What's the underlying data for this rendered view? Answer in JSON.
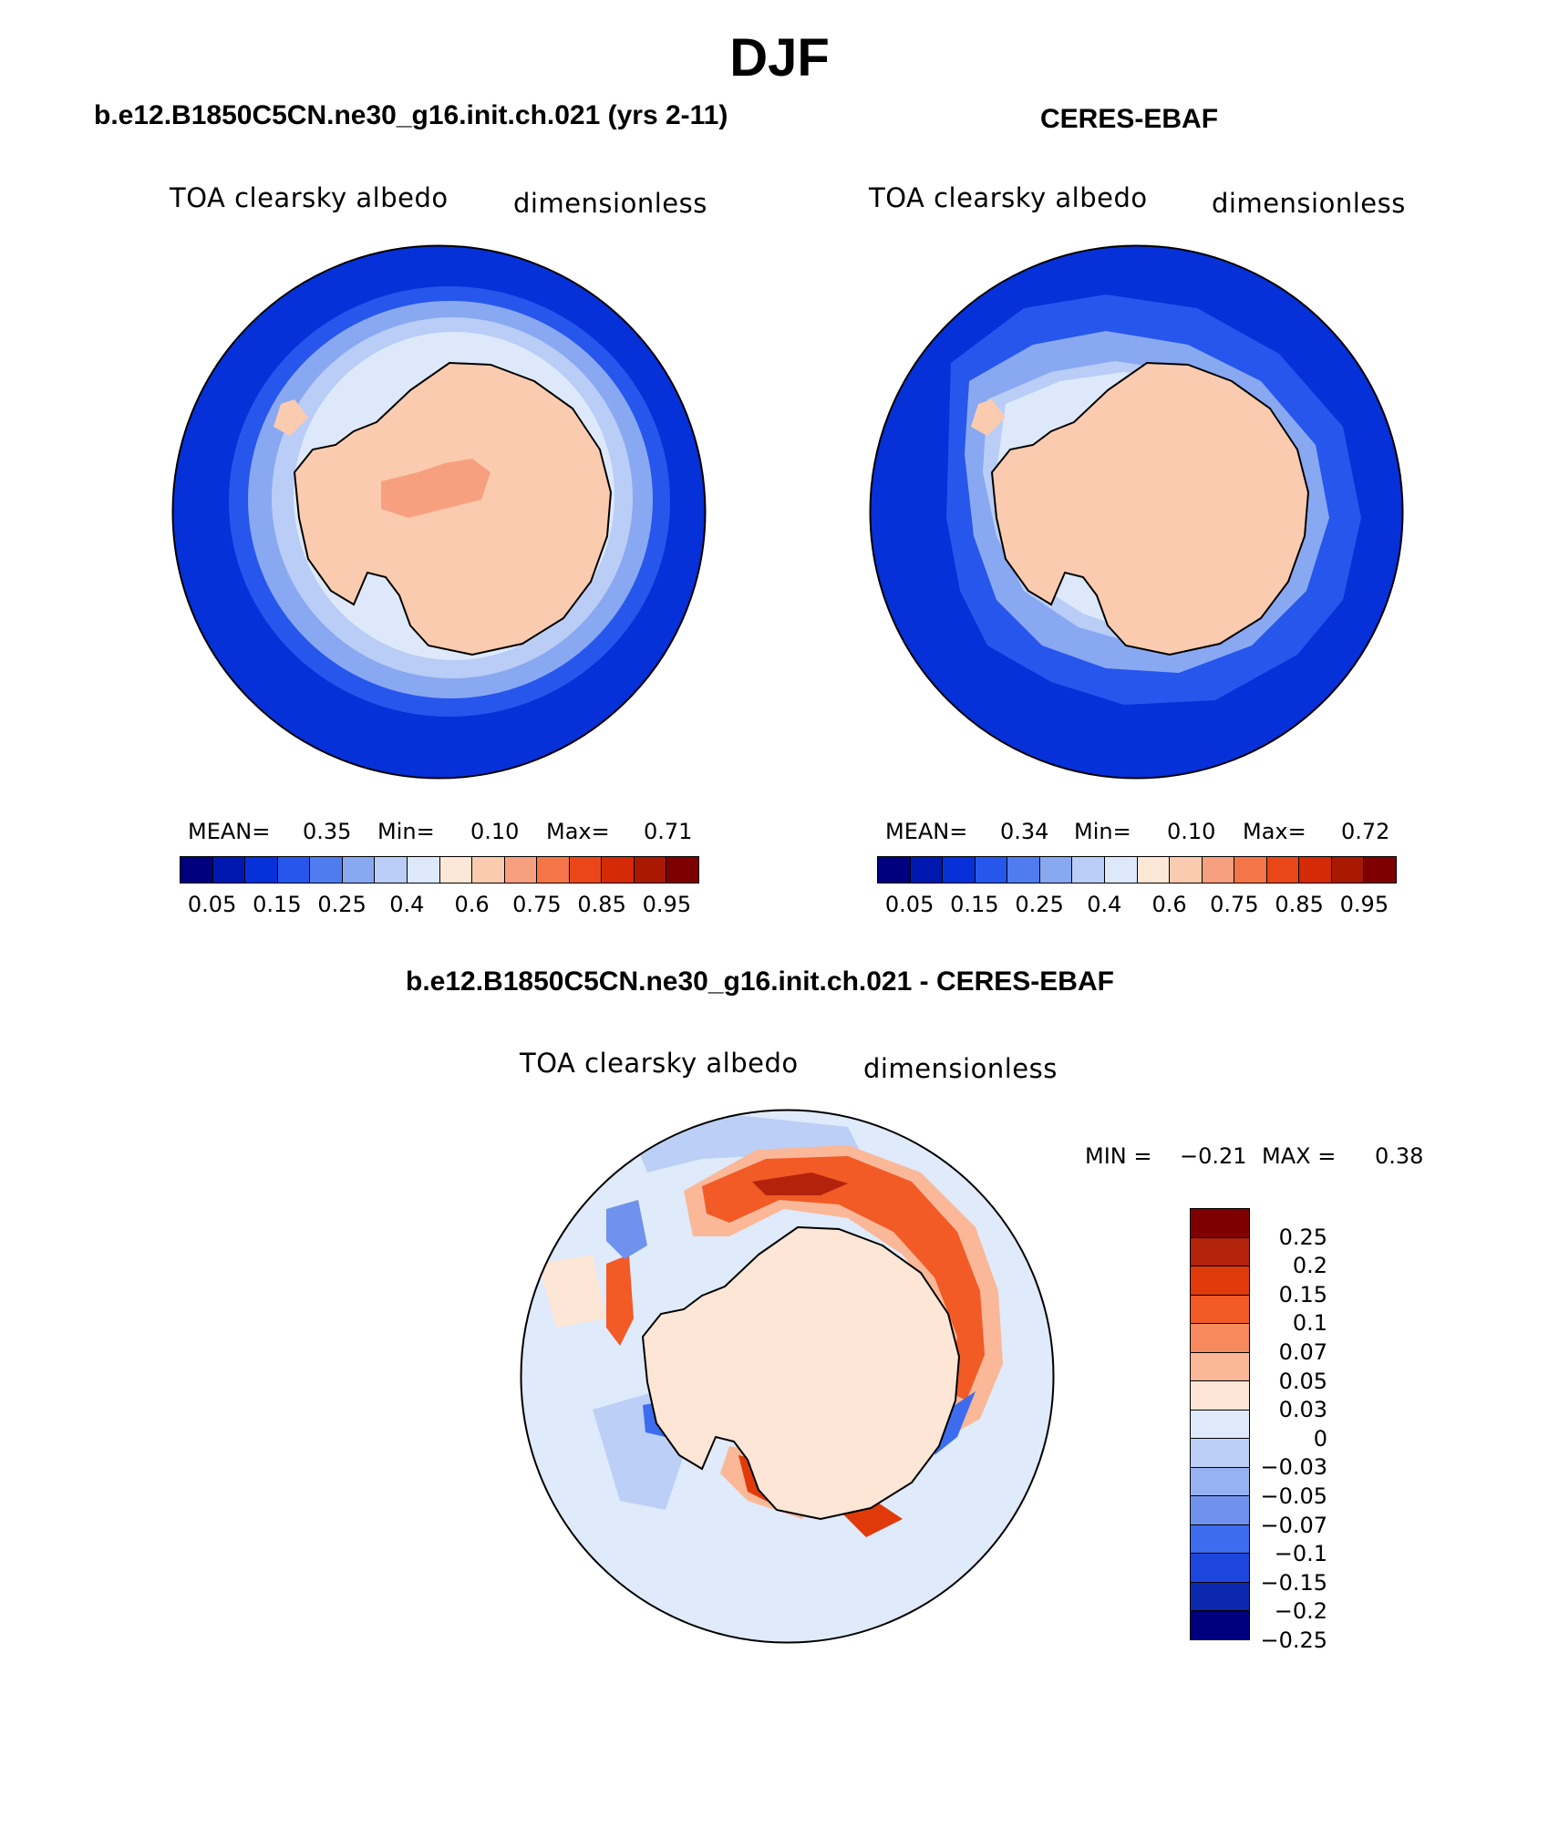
{
  "season": "DJF",
  "panels": [
    {
      "title": "b.e12.B1850C5CN.ne30_g16.init.ch.021 (yrs 2-11)",
      "variable": "TOA clearsky albedo",
      "units": "dimensionless",
      "stats": {
        "mean_label": "MEAN=",
        "mean": "0.35",
        "min_label": "Min=",
        "min": "0.10",
        "max_label": "Max=",
        "max": "0.71"
      }
    },
    {
      "title": "CERES-EBAF",
      "variable": "TOA clearsky albedo",
      "units": "dimensionless",
      "stats": {
        "mean_label": "MEAN=",
        "mean": "0.34",
        "min_label": "Min=",
        "min": "0.10",
        "max_label": "Max=",
        "max": "0.72"
      }
    },
    {
      "title": "b.e12.B1850C5CN.ne30_g16.init.ch.021 - CERES-EBAF",
      "variable": "TOA clearsky albedo",
      "units": "dimensionless",
      "stats": {
        "min_label": "MIN =",
        "min": "−0.21",
        "max_label": "MAX =",
        "max": "0.38"
      }
    }
  ],
  "colorbar_abs": {
    "colors": [
      "#00007f",
      "#0018b0",
      "#0630d8",
      "#2656ec",
      "#4f7df0",
      "#89a8f2",
      "#b9cdf6",
      "#dde9fb",
      "#fde8d8",
      "#fbcbb0",
      "#f7a080",
      "#f47548",
      "#ea4719",
      "#d42a05",
      "#a91800",
      "#7f0000"
    ],
    "ticks": [
      "0.05",
      "0.15",
      "0.25",
      "0.4",
      "0.6",
      "0.75",
      "0.85",
      "0.95"
    ]
  },
  "colorbar_diff": {
    "colors_top_to_bottom": [
      "#7f0000",
      "#b3220a",
      "#e03a0b",
      "#f25a26",
      "#f6895d",
      "#fab898",
      "#fde6d6",
      "#dfeafa",
      "#bccff6",
      "#97b2f3",
      "#6f92ee",
      "#3e6cee",
      "#1d46dc",
      "#0b28ae",
      "#00007f"
    ],
    "ticks": [
      "0.25",
      "0.2",
      "0.15",
      "0.1",
      "0.07",
      "0.05",
      "0.03",
      "0",
      "−0.03",
      "−0.05",
      "−0.07",
      "−0.1",
      "−0.15",
      "−0.2",
      "−0.25"
    ]
  },
  "map_colors": {
    "ocean_dark": "#0630d8",
    "ocean_mid": "#2656ec",
    "ice_blue": "#89a8f2",
    "ice_light": "#b9cdf6",
    "ice_pale": "#dde9fb",
    "land": "#fbcbb0",
    "land_high": "#f7a080",
    "diff_bg": "#dfeafa",
    "diff_land": "#fde6d6"
  }
}
